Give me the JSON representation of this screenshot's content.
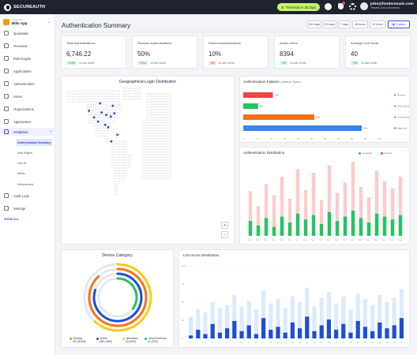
{
  "topbar": {
    "brand": "SECUREAUTH",
    "trial": "Trial ends in 30 days",
    "user_email": "john@fondermusic.com",
    "user_tenant": "Tenant: john-business"
  },
  "sidebar": {
    "app_label": "Application",
    "app_name": "Billo App",
    "nav": [
      {
        "label": "Quickstart"
      },
      {
        "label": "Overview"
      },
      {
        "label": "Risk Engine"
      },
      {
        "label": "Applications"
      },
      {
        "label": "Authentication"
      },
      {
        "label": "Users"
      },
      {
        "label": "Organizations"
      },
      {
        "label": "Appearance"
      },
      {
        "label": "Analytics"
      }
    ],
    "sub": [
      {
        "label": "Authentication Summary"
      },
      {
        "label": "Risk Engine"
      },
      {
        "label": "Geo IA"
      },
      {
        "label": "Metric"
      },
      {
        "label": "Enforcement"
      }
    ],
    "bottom": [
      {
        "label": "Audit Logs"
      },
      {
        "label": "Settings"
      }
    ],
    "show_all": "SHOW ALL"
  },
  "header": {
    "title": "Authentication Summary",
    "ranges": [
      "180 days",
      "90 days",
      "7 days",
      "48 hours",
      "24 hours"
    ],
    "custom": "Custom"
  },
  "kpis": [
    {
      "title": "Total Authentications",
      "value": "6,746.22",
      "delta": "+0.4%",
      "direction": "up",
      "note": "vs last month"
    },
    {
      "title": "Success Authentications",
      "value": "50%",
      "delta": "+0.4%",
      "direction": "up",
      "note": "vs last month"
    },
    {
      "title": "Denied Authentications",
      "value": "10%",
      "delta": "-0%",
      "direction": "down",
      "note": "vs last month"
    },
    {
      "title": "Active Users",
      "value": "8394",
      "delta": "+0%",
      "direction": "up",
      "note": "vs last month"
    },
    {
      "title": "Average LOA Score",
      "value": "40",
      "delta": "+0%",
      "direction": "up",
      "note": "vs last month"
    }
  ],
  "map": {
    "title": "Geographical Login Distribution",
    "zoom_in": "+",
    "zoom_out": "−",
    "markers": [
      [
        -97,
        45
      ],
      [
        -88,
        42
      ],
      [
        -79,
        40
      ],
      [
        -112,
        39
      ],
      [
        -104,
        34
      ],
      [
        -90,
        30
      ],
      [
        -72,
        44
      ],
      [
        -122,
        47
      ],
      [
        -84,
        27
      ],
      [
        -78,
        10
      ],
      [
        -75,
        53
      ],
      [
        -100,
        56
      ],
      [
        -66,
        18
      ]
    ]
  },
  "colors": {
    "purple": "#4f46e5",
    "red": "#ef4444",
    "green": "#22c55e",
    "orange": "#f97316",
    "blue": "#3b82f6",
    "dark_blue": "#1d4ed8",
    "light_red": "#fecaca",
    "map_dot": "#e5e7eb",
    "map_marker": "#1d4ed8"
  },
  "chart_data": [
    {
      "type": "bar",
      "title": "Authentication Failures",
      "subtitle": "( Method Types )",
      "categories": [
        "Biometric",
        "Push Notification",
        "Authenticator",
        "Magic Link"
      ],
      "values": [
        10,
        5,
        24,
        40
      ],
      "bar_labels": [
        "10%",
        "5%",
        "24%",
        "40%"
      ],
      "colors": [
        "#ef4444",
        "#22c55e",
        "#f97316",
        "#3b82f6"
      ],
      "xlim": [
        0,
        100
      ],
      "legend": "right"
    },
    {
      "type": "bar",
      "title": "Authentication Distribution",
      "series": [
        {
          "name": "Accepted",
          "color": "#22c55e",
          "values": [
            20,
            14,
            24,
            12,
            26,
            18,
            30,
            22,
            28,
            16,
            32,
            20,
            26,
            34,
            24,
            18,
            30,
            26,
            22,
            28
          ]
        },
        {
          "name": "Denied",
          "color": "#fecaca",
          "values": [
            60,
            40,
            70,
            55,
            80,
            50,
            90,
            62,
            85,
            48,
            95,
            58,
            72,
            100,
            66,
            52,
            88,
            74,
            64,
            80
          ]
        }
      ],
      "categories": [
        "Jan",
        "Feb",
        "Mar",
        "Apr",
        "May",
        "Jun",
        "Jul",
        "Aug",
        "Sep",
        "Oct",
        "Nov",
        "Dec",
        "Jan",
        "Feb",
        "Mar",
        "Apr",
        "May",
        "Jun",
        "Jul",
        "Aug"
      ],
      "ylim": [
        0,
        100
      ],
      "legend": "top-right"
    },
    {
      "type": "pie",
      "title": "Device Category",
      "categories": [
        "Desktop",
        "Mobile",
        "Wearables",
        "Virtual Machines"
      ],
      "values": [
        48.5,
        40,
        10,
        12
      ],
      "value_labels": [
        "23 ( 48.5%)",
        "400 ( 40%)",
        "10 (10%)",
        "47 (12%)"
      ],
      "colors": [
        "#f97316",
        "#1d4ed8",
        "#facc15",
        "#22c55e"
      ],
      "legend": "bottom"
    },
    {
      "type": "bar",
      "title": "LOA Score Distribution",
      "series": [
        {
          "name": "Score",
          "color": "#1d4ed8",
          "values": [
            4,
            12,
            6,
            20,
            8,
            14,
            24,
            10,
            18,
            6,
            28,
            12,
            16,
            8,
            22,
            14,
            30,
            10,
            18,
            26,
            12,
            20,
            8,
            24,
            16,
            10,
            22,
            14,
            18,
            28
          ]
        },
        {
          "name": "Baseline",
          "color": "#dbeafe",
          "values": [
            30,
            40,
            36,
            50,
            42,
            46,
            60,
            44,
            52,
            40,
            66,
            48,
            54,
            42,
            58,
            50,
            70,
            44,
            56,
            64,
            48,
            58,
            40,
            62,
            54,
            46,
            60,
            50,
            56,
            68
          ]
        }
      ],
      "categories": [
        "1",
        "2",
        "3",
        "4",
        "5",
        "6",
        "7",
        "8",
        "9",
        "10",
        "11",
        "12",
        "13",
        "14",
        "15",
        "16",
        "17",
        "18",
        "19",
        "20",
        "21",
        "22",
        "23",
        "24",
        "25",
        "26",
        "27",
        "28",
        "29",
        "30"
      ],
      "ylim": [
        0,
        100
      ],
      "legend": "none"
    }
  ]
}
